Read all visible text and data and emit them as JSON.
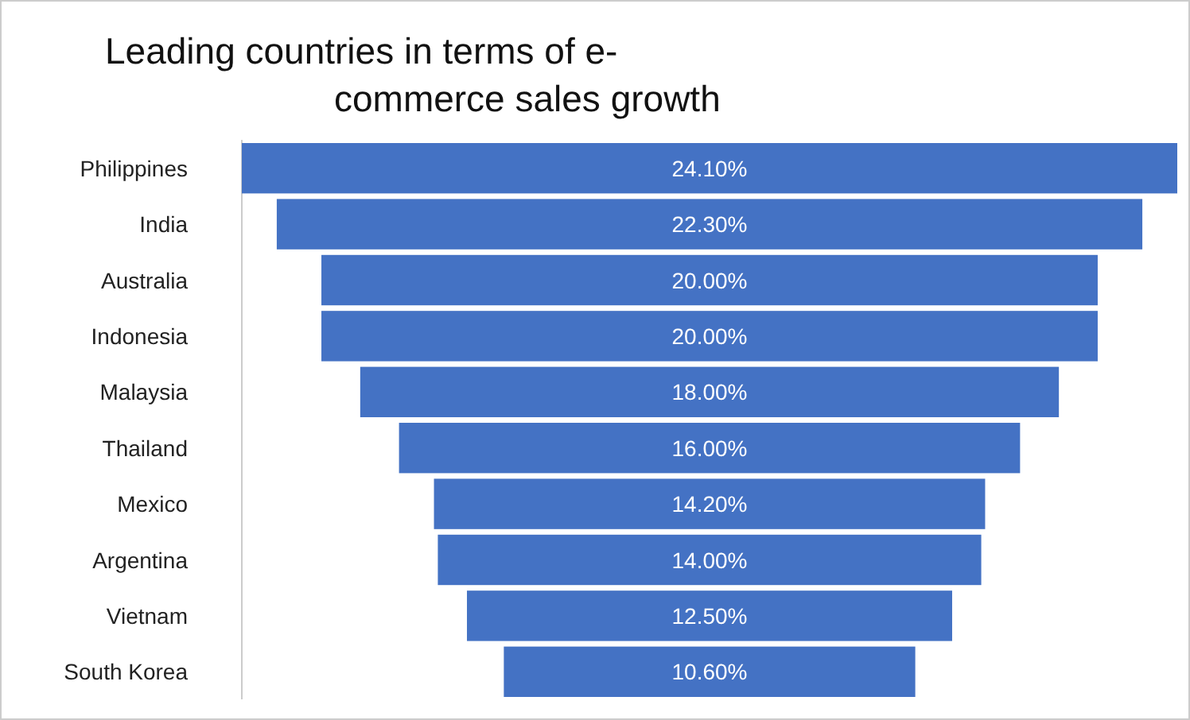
{
  "chart_data": {
    "type": "other",
    "title": "Leading countries in terms of e-commerce sales growth",
    "categories": [
      "Philippines",
      "India",
      "Australia",
      "Indonesia",
      "Malaysia",
      "Thailand",
      "Mexico",
      "Argentina",
      "Vietnam",
      "South Korea"
    ],
    "values": [
      24.1,
      22.3,
      20,
      20,
      18,
      16,
      14.2,
      14,
      12.5,
      10.6
    ],
    "value_labels": [
      "24.10%",
      "22.30%",
      "20.00%",
      "20.00%",
      "18.00%",
      "16.00%",
      "14.20%",
      "14.00%",
      "12.50%",
      "10.60%"
    ],
    "color": "#4472c4",
    "data_labels": true
  }
}
